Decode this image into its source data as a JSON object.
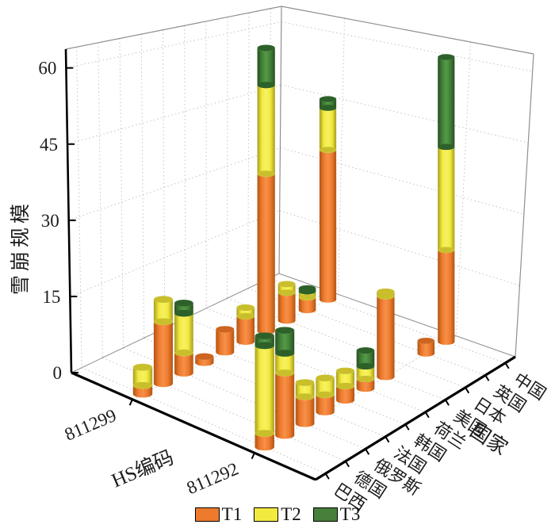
{
  "chart_data": {
    "type": "bar3d_stacked_cylinders",
    "title": "",
    "value_axis": {
      "label": "雪崩规模",
      "ticks": [
        0,
        15,
        30,
        45,
        60
      ],
      "max": 60
    },
    "x_axis": {
      "label": "HS编码",
      "categories": [
        "811299",
        "811292"
      ]
    },
    "depth_axis": {
      "label": "国家",
      "categories": [
        "巴西",
        "德国",
        "俄罗斯",
        "法国",
        "韩国",
        "荷兰",
        "美国",
        "日本",
        "英国",
        "中国"
      ]
    },
    "legend": [
      {
        "name": "T1",
        "color": "#ee7a2e"
      },
      {
        "name": "T2",
        "color": "#f2ea3f"
      },
      {
        "name": "T3",
        "color": "#47803a"
      }
    ],
    "series": [
      {
        "hs_code": "811299",
        "values": {
          "T1": [
            1.7,
            12.2,
            4.0,
            1.2,
            4.5,
            5.0,
            31.0,
            5.5,
            2.5,
            29.5
          ],
          "T2": [
            3.6,
            4.4,
            7.8,
            0,
            0,
            1.7,
            17.5,
            1.7,
            1.2,
            8.3
          ],
          "T3": [
            0,
            0,
            2.0,
            0,
            0,
            0,
            7.3,
            0,
            0.6,
            1.7
          ]
        }
      },
      {
        "hs_code": "811292",
        "values": {
          "T1": [
            2.7,
            12.3,
            5.3,
            3.4,
            2.8,
            1.9,
            15.9,
            0,
            2.5,
            18.1
          ],
          "T2": [
            17.3,
            3.9,
            2.8,
            3.3,
            3.0,
            2.5,
            0.9,
            0,
            0,
            20.3
          ],
          "T3": [
            1.9,
            4.5,
            0,
            0,
            0,
            3.1,
            0,
            0,
            0,
            17.7
          ]
        }
      }
    ],
    "colors": {
      "t1": {
        "main": "#ee7a2e",
        "dark": "#b05513",
        "light": "#f69048",
        "cap": "#cd6420"
      },
      "t2": {
        "main": "#f2ea3f",
        "dark": "#a89d1f",
        "light": "#f7f163",
        "cap": "#c9bf2d"
      },
      "t3": {
        "main": "#428038",
        "dark": "#274f21",
        "light": "#549a47",
        "cap": "#2d6129"
      },
      "grid": "#c6c6c6",
      "wall_edge": "#8f8f8f",
      "axis": "#000000",
      "text": "#1c1c1c"
    },
    "layout_hints": {
      "grid": "dotted",
      "legend_position": "bottom-center"
    }
  }
}
